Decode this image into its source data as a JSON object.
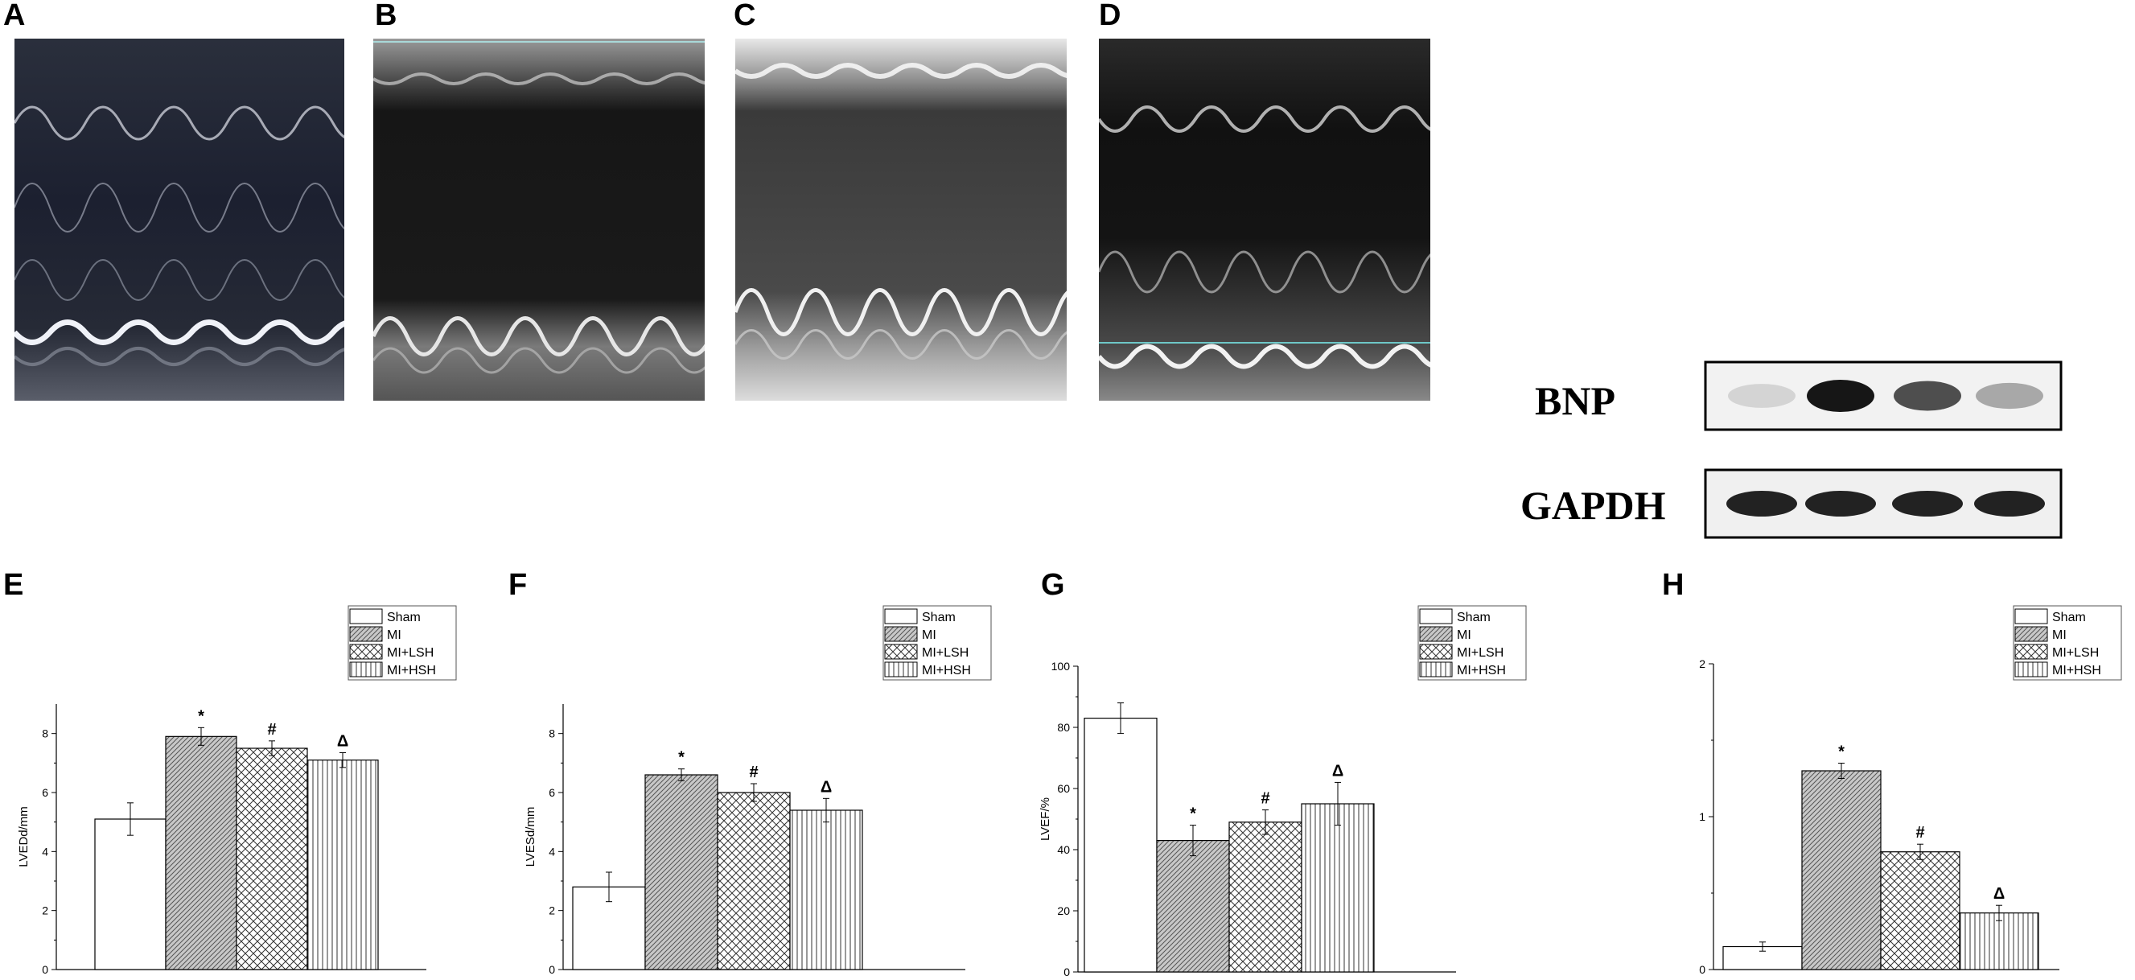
{
  "panels": {
    "a": "A",
    "b": "B",
    "c": "C",
    "d": "D",
    "e": "E",
    "f": "F",
    "g": "G",
    "h": "H"
  },
  "blot": {
    "labels": [
      "BNP",
      "GAPDH"
    ],
    "bnp_band_intensity": [
      0.15,
      1.0,
      0.75,
      0.35
    ],
    "gapdh_band_intensity": [
      0.9,
      0.9,
      0.9,
      0.9
    ]
  },
  "colors": {
    "sham": "#ffffff",
    "mi": "#c8c8c8",
    "stroke": "#000000"
  },
  "chart_data": [
    {
      "id": "E",
      "type": "bar",
      "categories": [
        "Sham",
        "MI",
        "MI+LSH",
        "MI+HSH"
      ],
      "values": [
        5.1,
        7.9,
        7.5,
        7.1
      ],
      "errors": [
        0.55,
        0.3,
        0.25,
        0.25
      ],
      "significance": [
        "",
        "*",
        "#",
        "Δ"
      ],
      "ylabel": "LVEDd/mm",
      "ylim": [
        0,
        9
      ],
      "yticks": [
        0,
        2,
        4,
        6,
        8
      ],
      "legend": [
        "Sham",
        "MI",
        "MI+LSH",
        "MI+HSH"
      ],
      "legend_position": "top-right",
      "patterns": [
        "none",
        "diagonal",
        "crosshatch",
        "vertical"
      ]
    },
    {
      "id": "F",
      "type": "bar",
      "categories": [
        "Sham",
        "MI",
        "MI+LSH",
        "MI+HSH"
      ],
      "values": [
        2.8,
        6.6,
        6.0,
        5.4
      ],
      "errors": [
        0.5,
        0.2,
        0.3,
        0.4
      ],
      "significance": [
        "",
        "*",
        "#",
        "Δ"
      ],
      "ylabel": "LVESd/mm",
      "ylim": [
        0,
        9
      ],
      "yticks": [
        0,
        2,
        4,
        6,
        8
      ],
      "legend": [
        "Sham",
        "MI",
        "MI+LSH",
        "MI+HSH"
      ],
      "legend_position": "top-right",
      "patterns": [
        "none",
        "diagonal",
        "crosshatch",
        "vertical"
      ]
    },
    {
      "id": "G",
      "type": "bar",
      "categories": [
        "Sham",
        "MI",
        "MI+LSH",
        "MI+HSH"
      ],
      "values": [
        83,
        43,
        49,
        55
      ],
      "errors": [
        5,
        5,
        4,
        7
      ],
      "significance": [
        "",
        "*",
        "#",
        "Δ"
      ],
      "ylabel": "LVEF/%",
      "ylim": [
        0,
        100
      ],
      "yticks": [
        0,
        20,
        40,
        60,
        80,
        100
      ],
      "legend": [
        "Sham",
        "MI",
        "MI+LSH",
        "MI+HSH"
      ],
      "legend_position": "top-right",
      "patterns": [
        "none",
        "diagonal",
        "crosshatch",
        "vertical"
      ]
    },
    {
      "id": "H",
      "type": "bar",
      "categories": [
        "Sham",
        "MI",
        "MI+LSH",
        "MI+HSH"
      ],
      "values": [
        0.15,
        1.3,
        0.77,
        0.37
      ],
      "errors": [
        0.03,
        0.05,
        0.05,
        0.05
      ],
      "significance": [
        "",
        "*",
        "#",
        "Δ"
      ],
      "ylabel": "",
      "ylim": [
        0,
        2
      ],
      "yticks": [
        0,
        1,
        2
      ],
      "legend": [
        "Sham",
        "MI",
        "MI+LSH",
        "MI+HSH"
      ],
      "legend_position": "top-right",
      "patterns": [
        "none",
        "diagonal",
        "crosshatch",
        "vertical"
      ]
    }
  ]
}
